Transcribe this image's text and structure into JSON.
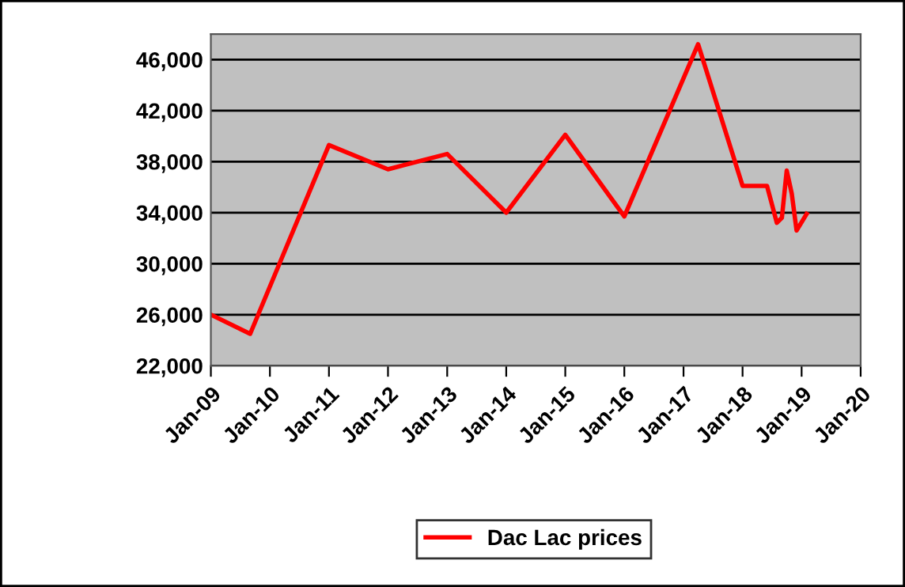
{
  "chart_data": {
    "type": "line",
    "x": [
      "2009-01",
      "2009-09",
      "2011-01",
      "2012-01",
      "2013-01",
      "2014-01",
      "2015-01",
      "2016-01",
      "2017-04",
      "2018-01",
      "2018-06",
      "2018-08",
      "2018-09",
      "2018-10",
      "2018-11",
      "2018-12",
      "2019-02"
    ],
    "series": [
      {
        "name": "Dac Lac prices",
        "color": "#ff0000",
        "values": [
          26000,
          24500,
          39300,
          37400,
          38600,
          34000,
          40100,
          33700,
          47200,
          36100,
          36100,
          33200,
          33600,
          37300,
          35500,
          32600,
          33900
        ]
      }
    ],
    "xlim": [
      "2009-01",
      "2020-01"
    ],
    "xticks": [
      {
        "value": "2009-01",
        "label": "Jan-09"
      },
      {
        "value": "2010-01",
        "label": "Jan-10"
      },
      {
        "value": "2011-01",
        "label": "Jan-11"
      },
      {
        "value": "2012-01",
        "label": "Jan-12"
      },
      {
        "value": "2013-01",
        "label": "Jan-13"
      },
      {
        "value": "2014-01",
        "label": "Jan-14"
      },
      {
        "value": "2015-01",
        "label": "Jan-15"
      },
      {
        "value": "2016-01",
        "label": "Jan-16"
      },
      {
        "value": "2017-01",
        "label": "Jan-17"
      },
      {
        "value": "2018-01",
        "label": "Jan-18"
      },
      {
        "value": "2019-01",
        "label": "Jan-19"
      },
      {
        "value": "2020-01",
        "label": "Jan-20"
      }
    ],
    "ylim": [
      22000,
      48000
    ],
    "yticks": [
      {
        "value": 22000,
        "label": "22,000"
      },
      {
        "value": 26000,
        "label": "26,000"
      },
      {
        "value": 30000,
        "label": "30,000"
      },
      {
        "value": 34000,
        "label": "34,000"
      },
      {
        "value": 38000,
        "label": "38,000"
      },
      {
        "value": 42000,
        "label": "42,000"
      },
      {
        "value": 46000,
        "label": "46,000"
      }
    ],
    "grid": "y",
    "legend": "bottom",
    "marker": "none",
    "line_style": "solid"
  }
}
